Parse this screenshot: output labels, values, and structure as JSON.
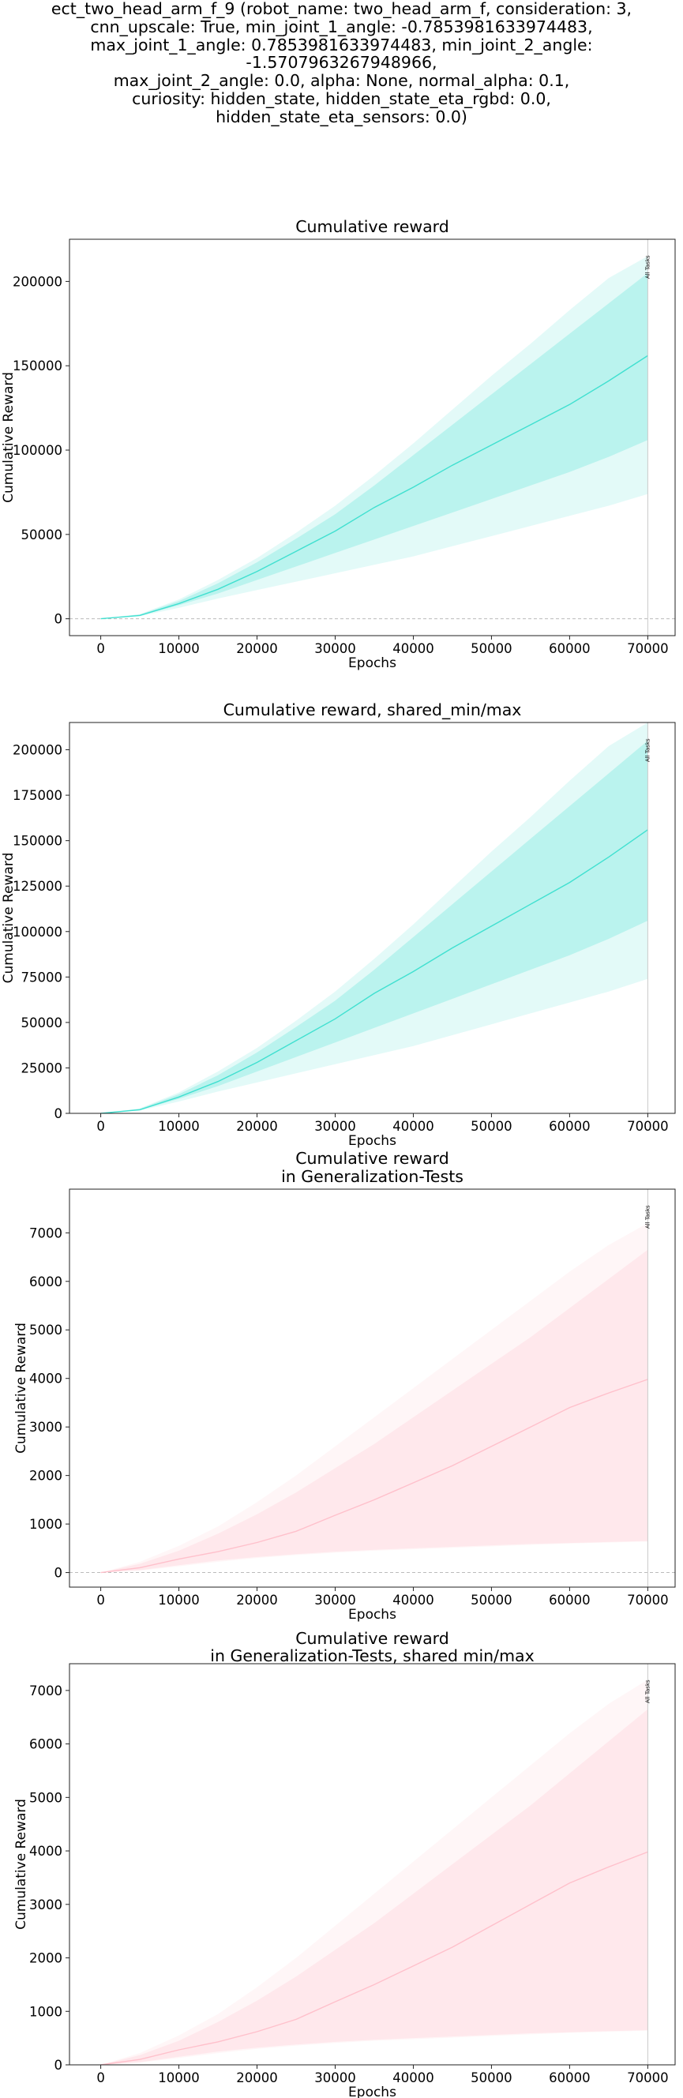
{
  "suptitle": "ect_two_head_arm_f_9 (robot_name: two_head_arm_f, consideration: 3,\ncnn_upscale: True, min_joint_1_angle: -0.7853981633974483,\nmax_joint_1_angle: 0.7853981633974483, min_joint_2_angle: -1.5707963267948966,\nmax_joint_2_angle: 0.0, alpha: None, normal_alpha: 0.1,\ncuriosity: hidden_state, hidden_state_eta_rgbd: 0.0,\nhidden_state_eta_sensors: 0.0)",
  "chart_data": [
    {
      "type": "line",
      "title": [
        "Cumulative reward"
      ],
      "xlabel": "Epochs",
      "ylabel": "Cumulative Reward",
      "xlim": [
        -4000,
        73500
      ],
      "ylim": [
        -10000,
        225000
      ],
      "xticks": [
        0,
        10000,
        20000,
        30000,
        40000,
        50000,
        60000,
        70000
      ],
      "yticks": [
        0,
        50000,
        100000,
        150000,
        200000
      ],
      "zero_line": true,
      "vline_x": 70000,
      "vline_label": "All Tasks",
      "color": "#40E0D0",
      "x": [
        0,
        5000,
        10000,
        15000,
        20000,
        25000,
        30000,
        35000,
        40000,
        45000,
        50000,
        55000,
        60000,
        65000,
        70000
      ],
      "mean": [
        0,
        2000,
        9000,
        17500,
        28000,
        40000,
        52000,
        66000,
        78000,
        91000,
        103000,
        115000,
        127000,
        141000,
        156000
      ],
      "std_low": [
        0,
        1800,
        8000,
        15000,
        23000,
        31000,
        39000,
        47000,
        55000,
        63000,
        71000,
        79000,
        87000,
        96000,
        106000
      ],
      "std_high": [
        0,
        2500,
        10500,
        21000,
        33500,
        47500,
        62000,
        79000,
        97000,
        115000,
        133000,
        151000,
        169000,
        187000,
        205000
      ],
      "min": [
        0,
        1500,
        6500,
        12000,
        17000,
        22000,
        27000,
        32000,
        37000,
        43000,
        49000,
        55000,
        61000,
        67000,
        74000
      ],
      "max": [
        0,
        2800,
        11500,
        23000,
        36000,
        51000,
        67000,
        85000,
        104000,
        124000,
        144000,
        163000,
        183000,
        202000,
        215000
      ]
    },
    {
      "type": "line",
      "title": [
        "Cumulative reward, shared_min/max"
      ],
      "xlabel": "Epochs",
      "ylabel": "Cumulative Reward",
      "xlim": [
        -4000,
        73500
      ],
      "ylim": [
        0,
        215000
      ],
      "xticks": [
        0,
        10000,
        20000,
        30000,
        40000,
        50000,
        60000,
        70000
      ],
      "yticks": [
        0,
        25000,
        50000,
        75000,
        100000,
        125000,
        150000,
        175000,
        200000
      ],
      "zero_line": false,
      "vline_x": 70000,
      "vline_label": "All Tasks",
      "color": "#40E0D0",
      "x": [
        0,
        5000,
        10000,
        15000,
        20000,
        25000,
        30000,
        35000,
        40000,
        45000,
        50000,
        55000,
        60000,
        65000,
        70000
      ],
      "mean": [
        0,
        2000,
        9000,
        17500,
        28000,
        40000,
        52000,
        66000,
        78000,
        91000,
        103000,
        115000,
        127000,
        141000,
        156000
      ],
      "std_low": [
        0,
        1800,
        8000,
        15000,
        23000,
        31000,
        39000,
        47000,
        55000,
        63000,
        71000,
        79000,
        87000,
        96000,
        106000
      ],
      "std_high": [
        0,
        2500,
        10500,
        21000,
        33500,
        47500,
        62000,
        79000,
        97000,
        115000,
        133000,
        151000,
        169000,
        187000,
        205000
      ],
      "min": [
        0,
        1500,
        6500,
        12000,
        17000,
        22000,
        27000,
        32000,
        37000,
        43000,
        49000,
        55000,
        61000,
        67000,
        74000
      ],
      "max": [
        0,
        2800,
        11500,
        23000,
        36000,
        51000,
        67000,
        85000,
        104000,
        124000,
        144000,
        163000,
        183000,
        202000,
        215000
      ]
    },
    {
      "type": "line",
      "title": [
        "Cumulative reward",
        "in Generalization-Tests"
      ],
      "xlabel": "Epochs",
      "ylabel": "Cumulative Reward",
      "xlim": [
        -4000,
        73500
      ],
      "ylim": [
        -300,
        7900
      ],
      "xticks": [
        0,
        10000,
        20000,
        30000,
        40000,
        50000,
        60000,
        70000
      ],
      "yticks": [
        0,
        1000,
        2000,
        3000,
        4000,
        5000,
        6000,
        7000
      ],
      "zero_line": true,
      "vline_x": 70000,
      "vline_label": "All Tasks",
      "color": "#FFC0CB",
      "x": [
        0,
        5000,
        10000,
        15000,
        20000,
        25000,
        30000,
        35000,
        40000,
        45000,
        50000,
        55000,
        60000,
        65000,
        70000
      ],
      "mean": [
        0,
        100,
        280,
        430,
        620,
        850,
        1180,
        1500,
        1850,
        2200,
        2600,
        3000,
        3400,
        3700,
        3980
      ],
      "std_low": [
        0,
        50,
        150,
        250,
        320,
        380,
        430,
        470,
        500,
        530,
        560,
        590,
        610,
        630,
        650
      ],
      "std_high": [
        0,
        180,
        450,
        800,
        1200,
        1650,
        2150,
        2650,
        3200,
        3750,
        4300,
        4850,
        5450,
        6050,
        6650
      ],
      "min": [
        0,
        40,
        130,
        220,
        300,
        360,
        410,
        450,
        480,
        510,
        540,
        570,
        600,
        620,
        640
      ],
      "max": [
        0,
        220,
        550,
        950,
        1450,
        2000,
        2600,
        3200,
        3800,
        4400,
        5000,
        5600,
        6200,
        6750,
        7200
      ]
    },
    {
      "type": "line",
      "title": [
        "Cumulative reward",
        "in Generalization-Tests, shared min/max"
      ],
      "xlabel": "Epochs",
      "ylabel": "Cumulative Reward",
      "xlim": [
        -4000,
        73500
      ],
      "ylim": [
        0,
        7500
      ],
      "xticks": [
        0,
        10000,
        20000,
        30000,
        40000,
        50000,
        60000,
        70000
      ],
      "yticks": [
        0,
        1000,
        2000,
        3000,
        4000,
        5000,
        6000,
        7000
      ],
      "zero_line": false,
      "vline_x": 70000,
      "vline_label": "All Tasks",
      "color": "#FFC0CB",
      "x": [
        0,
        5000,
        10000,
        15000,
        20000,
        25000,
        30000,
        35000,
        40000,
        45000,
        50000,
        55000,
        60000,
        65000,
        70000
      ],
      "mean": [
        0,
        100,
        280,
        430,
        620,
        850,
        1180,
        1500,
        1850,
        2200,
        2600,
        3000,
        3400,
        3700,
        3980
      ],
      "std_low": [
        0,
        50,
        150,
        250,
        320,
        380,
        430,
        470,
        500,
        530,
        560,
        590,
        610,
        630,
        650
      ],
      "std_high": [
        0,
        180,
        450,
        800,
        1200,
        1650,
        2150,
        2650,
        3200,
        3750,
        4300,
        4850,
        5450,
        6050,
        6650
      ],
      "min": [
        0,
        40,
        130,
        220,
        300,
        360,
        410,
        450,
        480,
        510,
        540,
        570,
        600,
        620,
        640
      ],
      "max": [
        0,
        220,
        550,
        950,
        1450,
        2000,
        2600,
        3200,
        3800,
        4400,
        5000,
        5600,
        6200,
        6750,
        7200
      ]
    }
  ]
}
